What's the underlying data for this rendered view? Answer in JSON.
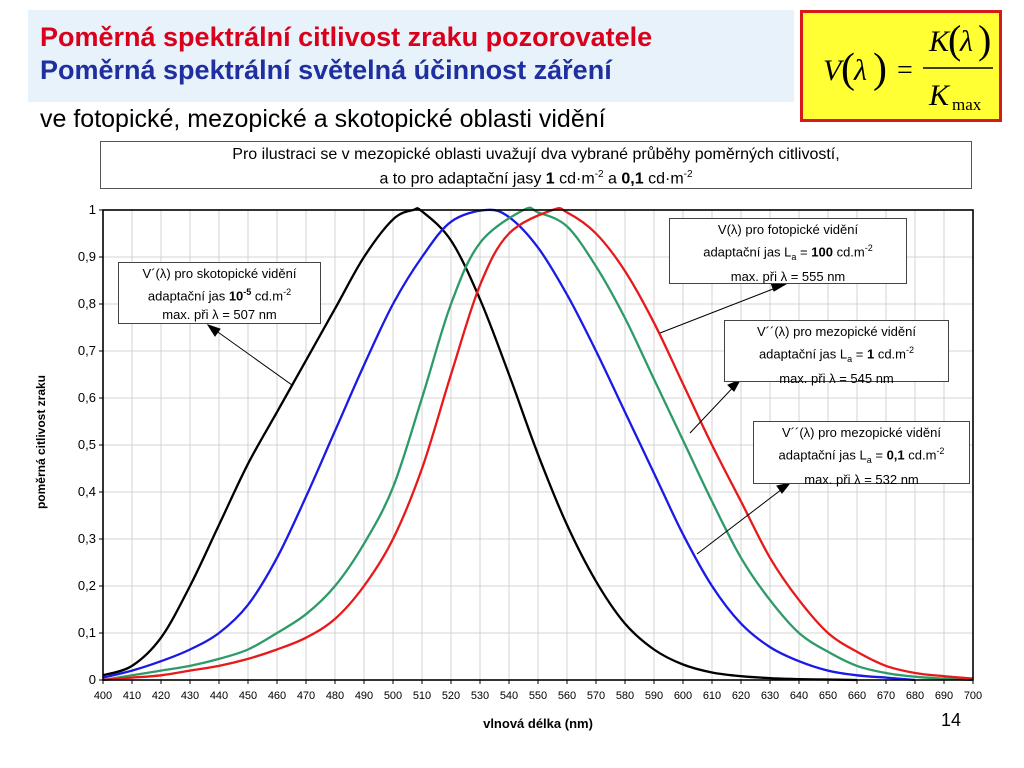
{
  "header": {
    "title_line1": "Poměrná spektrální citlivost zraku pozorovatele",
    "title_line2": "Poměrná spektrální světelná účinnost záření",
    "subtitle": "ve fotopické, mezopické a skotopické oblasti vidění"
  },
  "formula": {
    "lhs": "V",
    "lambda": "λ",
    "equals": "=",
    "numerator": "K",
    "denominator": "K",
    "denominator_sub": "max"
  },
  "note": {
    "line1": "Pro ilustraci se v mezopické oblasti uvažují dva vybrané průběhy poměrných citlivostí,",
    "line2_prefix": "a to pro adaptační jasy ",
    "value1": "1",
    "unit1": " cd·m",
    "exp1": "-2",
    "middle": " a ",
    "value2": "0,1",
    "unit2": " cd·m",
    "exp2": "-2"
  },
  "page_number": "14",
  "colors": {
    "scotopic": "#000000",
    "mesopic_1": "#1a1ae6",
    "mesopic_01": "#2e9a68",
    "photopic": "#e61a1a",
    "title_red": "#d8001a",
    "title_blue": "#1f2f9f",
    "formula_bg": "#ffff33",
    "formula_border": "#d61a1a"
  },
  "annotations": {
    "scotopic": {
      "l1": "V´(λ) pro skotopické vidění",
      "l2_pre": "adaptační jas ",
      "l2_val": "10",
      "l2_exp": "-5",
      "l2_unit": " cd.m",
      "l2_unit_exp": "-2",
      "l3": "max. při  λ = 507 nm"
    },
    "photopic": {
      "l1": "V(λ) pro fotopické vidění",
      "l2_pre": "adaptační jas L",
      "l2_sub": "a",
      "l2_eq": " = ",
      "l2_val": "100",
      "l2_unit": " cd.m",
      "l2_unit_exp": "-2",
      "l3": "max. při  λ = 555 nm"
    },
    "mesopic_1": {
      "l1": "V´´(λ)  pro mezopické vidění",
      "l2_pre": "adaptační jas  L",
      "l2_sub": "a",
      "l2_eq": " = ",
      "l2_val": "1",
      "l2_unit": " cd.m",
      "l2_unit_exp": "-2",
      "l3": "max. při  λ = 545 nm"
    },
    "mesopic_01": {
      "l1": "V´´(λ)  pro mezopické vidění",
      "l2_pre": "adaptační jas L",
      "l2_sub": "a",
      "l2_eq": " = ",
      "l2_val": "0,1",
      "l2_unit": " cd.m",
      "l2_unit_exp": "-2",
      "l3": "max. při  λ = 532 nm"
    }
  },
  "chart_data": {
    "type": "line",
    "xlabel": "vlnová délka  (nm)",
    "ylabel": "poměrná citlivost zraku",
    "xlim": [
      400,
      700
    ],
    "ylim": [
      0,
      1
    ],
    "x_ticks": [
      400,
      410,
      420,
      430,
      440,
      450,
      460,
      470,
      480,
      490,
      500,
      510,
      520,
      530,
      540,
      550,
      560,
      570,
      580,
      590,
      600,
      610,
      620,
      630,
      640,
      650,
      660,
      670,
      680,
      690,
      700
    ],
    "y_ticks": [
      0,
      0.1,
      0.2,
      0.3,
      0.4,
      0.5,
      0.6,
      0.7,
      0.8,
      0.9,
      1
    ],
    "y_tick_labels": [
      "0",
      "0,1",
      "0,2",
      "0,3",
      "0,4",
      "0,5",
      "0,6",
      "0,7",
      "0,8",
      "0,9",
      "1"
    ],
    "grid": true,
    "series": [
      {
        "key": "scotopic",
        "color": "#000000",
        "x": [
          400,
          410,
          420,
          430,
          440,
          450,
          460,
          470,
          480,
          490,
          500,
          507,
          510,
          520,
          530,
          540,
          550,
          560,
          570,
          580,
          590,
          600,
          610,
          620,
          630,
          640,
          650,
          660
        ],
        "y": [
          0.01,
          0.03,
          0.09,
          0.2,
          0.33,
          0.46,
          0.57,
          0.68,
          0.79,
          0.9,
          0.98,
          1.0,
          0.997,
          0.935,
          0.81,
          0.65,
          0.48,
          0.33,
          0.21,
          0.12,
          0.065,
          0.033,
          0.016,
          0.008,
          0.004,
          0.002,
          0.001,
          0.0
        ]
      },
      {
        "key": "mesopic_01",
        "color": "#1a1ae6",
        "x": [
          400,
          410,
          420,
          430,
          440,
          450,
          460,
          470,
          480,
          490,
          500,
          510,
          520,
          532,
          540,
          550,
          560,
          570,
          580,
          590,
          600,
          610,
          620,
          630,
          640,
          650,
          660,
          670,
          680
        ],
        "y": [
          0.005,
          0.02,
          0.04,
          0.065,
          0.1,
          0.16,
          0.26,
          0.39,
          0.53,
          0.67,
          0.8,
          0.9,
          0.975,
          1.0,
          0.985,
          0.92,
          0.82,
          0.7,
          0.57,
          0.44,
          0.31,
          0.2,
          0.12,
          0.07,
          0.04,
          0.02,
          0.01,
          0.005,
          0.0
        ]
      },
      {
        "key": "mesopic_1",
        "color": "#2e9a68",
        "x": [
          400,
          410,
          420,
          430,
          440,
          450,
          460,
          470,
          480,
          490,
          500,
          510,
          520,
          530,
          545,
          550,
          560,
          570,
          580,
          590,
          600,
          610,
          620,
          630,
          640,
          650,
          660,
          670,
          680,
          690,
          700
        ],
        "y": [
          0.0,
          0.01,
          0.02,
          0.03,
          0.045,
          0.065,
          0.1,
          0.14,
          0.2,
          0.29,
          0.41,
          0.6,
          0.8,
          0.93,
          1.0,
          0.995,
          0.965,
          0.88,
          0.77,
          0.64,
          0.51,
          0.38,
          0.26,
          0.17,
          0.1,
          0.06,
          0.03,
          0.015,
          0.007,
          0.003,
          0.0
        ]
      },
      {
        "key": "photopic",
        "color": "#e61a1a",
        "x": [
          400,
          410,
          420,
          430,
          440,
          450,
          460,
          470,
          480,
          490,
          500,
          510,
          520,
          530,
          540,
          555,
          560,
          570,
          580,
          590,
          600,
          610,
          620,
          630,
          640,
          650,
          660,
          670,
          680,
          690,
          700
        ],
        "y": [
          0.0,
          0.005,
          0.01,
          0.02,
          0.03,
          0.045,
          0.065,
          0.09,
          0.13,
          0.2,
          0.3,
          0.45,
          0.65,
          0.84,
          0.95,
          1.0,
          0.995,
          0.95,
          0.87,
          0.76,
          0.63,
          0.5,
          0.38,
          0.26,
          0.17,
          0.1,
          0.06,
          0.03,
          0.015,
          0.008,
          0.003
        ]
      }
    ]
  }
}
